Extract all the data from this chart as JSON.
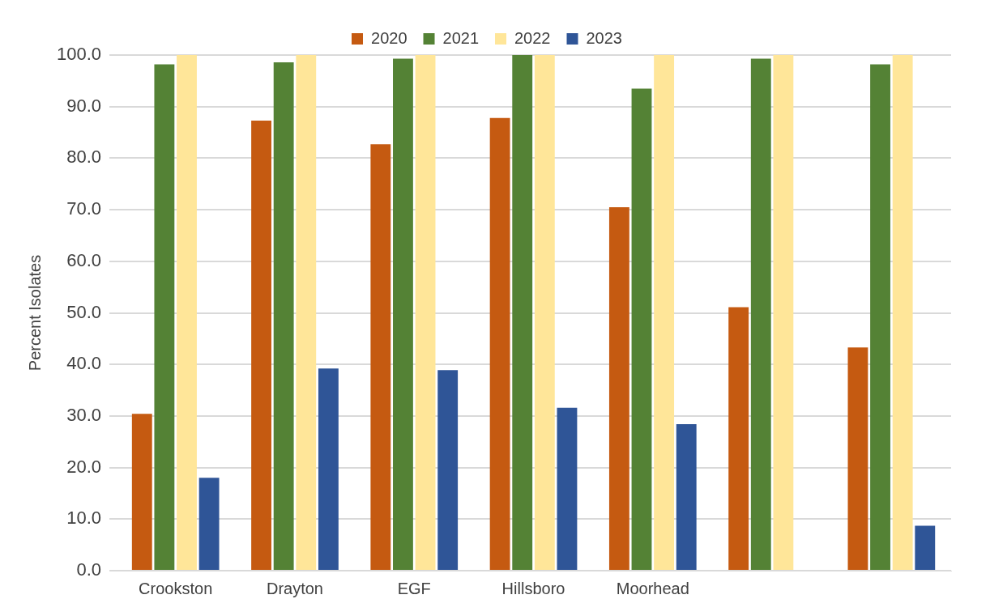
{
  "chart_data": {
    "type": "bar",
    "ylabel": "Percent Isolates",
    "categories": [
      "Crookston",
      "Drayton",
      "EGF",
      "Hillsboro",
      "Moorhead",
      null,
      null
    ],
    "series": [
      {
        "name": "2020",
        "color": "#c55a11",
        "values": [
          30.4,
          87.3,
          82.7,
          87.8,
          70.5,
          51.1,
          43.3
        ]
      },
      {
        "name": "2021",
        "color": "#548235",
        "values": [
          98.2,
          98.6,
          99.3,
          100,
          93.5,
          99.3,
          98.2
        ]
      },
      {
        "name": "2022",
        "color": "#ffe699",
        "values": [
          100,
          100,
          100,
          100,
          100,
          100,
          100
        ]
      },
      {
        "name": "2023",
        "color": "#2f5597",
        "values": [
          18.0,
          39.2,
          38.9,
          31.6,
          28.4,
          0,
          8.7
        ]
      }
    ],
    "ylim": [
      0,
      100
    ],
    "yticks": [
      {
        "value": 0,
        "label": "0.0"
      },
      {
        "value": 10,
        "label": "10.0"
      },
      {
        "value": 20,
        "label": "20.0"
      },
      {
        "value": 30,
        "label": "30.0"
      },
      {
        "value": 40,
        "label": "40.0"
      },
      {
        "value": 50,
        "label": "50.0"
      },
      {
        "value": 60,
        "label": "60.0"
      },
      {
        "value": 70,
        "label": "70.0"
      },
      {
        "value": 80,
        "label": "80.0"
      },
      {
        "value": 90,
        "label": "90.0"
      },
      {
        "value": 100,
        "label": "100.0"
      }
    ],
    "grid": "y",
    "legend": "top"
  }
}
